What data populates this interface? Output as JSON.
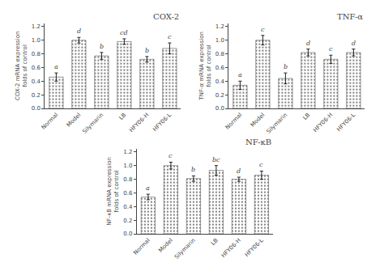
{
  "chart_data": [
    {
      "type": "bar",
      "title": "COX-2",
      "ylabel": "COX-2 mRNA expression folds of control",
      "categories": [
        "Normal",
        "Model",
        "Silymarin",
        "LB",
        "HFY06-H",
        "HFY06-L"
      ],
      "values": [
        0.46,
        1.0,
        0.77,
        0.98,
        0.72,
        0.88
      ],
      "errors": [
        0.06,
        0.04,
        0.05,
        0.04,
        0.04,
        0.08
      ],
      "annotations": [
        {
          "category": "Normal",
          "text": "a"
        },
        {
          "category": "Model",
          "text": "d"
        },
        {
          "category": "Silymarin",
          "text": "b"
        },
        {
          "category": "LB",
          "text": "cd"
        },
        {
          "category": "HFY06-H",
          "text": "b"
        },
        {
          "category": "HFY06-L",
          "text": "c"
        }
      ],
      "color": "#b8b8b8",
      "ylim": [
        0,
        1.25
      ],
      "yticks": [
        {
          "value": 0.0,
          "label": "0.0"
        },
        0.2,
        0.4,
        0.6,
        0.8,
        {
          "value": 1.0,
          "label": "1.0"
        },
        1.2
      ],
      "grid": false
    },
    {
      "type": "bar",
      "title": "TNF-α",
      "ylabel": "TNF-α mRNA expression folds of control",
      "categories": [
        "Normal",
        "Model",
        "Silymarin",
        "LB",
        "HFY06-H",
        "HFY06-L"
      ],
      "values": [
        0.34,
        1.0,
        0.44,
        0.82,
        0.72,
        0.82
      ],
      "errors": [
        0.06,
        0.07,
        0.08,
        0.05,
        0.06,
        0.05
      ],
      "annotations": [
        {
          "category": "Normal",
          "text": "a"
        },
        {
          "category": "Model",
          "text": "c"
        },
        {
          "category": "Silymarin",
          "text": "b"
        },
        {
          "category": "LB",
          "text": "d"
        },
        {
          "category": "HFY06-H",
          "text": "c"
        },
        {
          "category": "HFY06-L",
          "text": "d"
        }
      ],
      "color": "#b8b8b8",
      "ylim": [
        0,
        1.25
      ],
      "yticks": [
        {
          "value": 0.0,
          "label": "0.0"
        },
        0.2,
        0.4,
        0.6,
        0.8,
        {
          "value": 1.0,
          "label": "1.0"
        },
        1.2
      ],
      "grid": false
    },
    {
      "type": "bar",
      "title": "NF-κB",
      "ylabel": "NF-κB mRNA expression folds of control",
      "categories": [
        "Normal",
        "Model",
        "Silymarin",
        "LB",
        "HFY06-H",
        "HFY06-L"
      ],
      "values": [
        0.54,
        1.0,
        0.81,
        0.93,
        0.8,
        0.86
      ],
      "errors": [
        0.04,
        0.05,
        0.04,
        0.07,
        0.03,
        0.06
      ],
      "annotations": [
        {
          "category": "Normal",
          "text": "a"
        },
        {
          "category": "Model",
          "text": "c"
        },
        {
          "category": "Silymarin",
          "text": "b"
        },
        {
          "category": "LB",
          "text": "bc"
        },
        {
          "category": "HFY06-H",
          "text": "d"
        },
        {
          "category": "HFY06-L",
          "text": "c"
        }
      ],
      "color": "#b8b8b8",
      "ylim": [
        0,
        1.25
      ],
      "yticks": [
        {
          "value": 0.0,
          "label": "0.0"
        },
        0.2,
        0.4,
        0.6,
        0.8,
        {
          "value": 1.0,
          "label": "1.0"
        },
        1.2
      ],
      "grid": false
    }
  ]
}
